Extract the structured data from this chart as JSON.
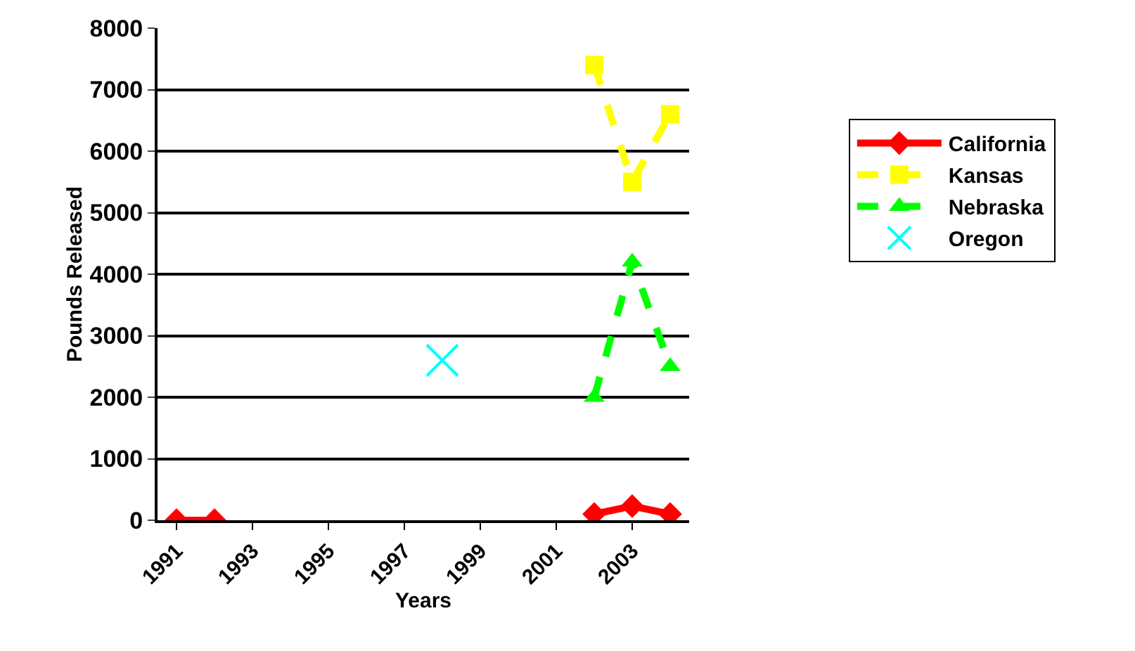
{
  "chart_data": {
    "type": "line",
    "xlabel": "Years",
    "ylabel": "Pounds Released",
    "categories": [
      "1991",
      null,
      "1993",
      null,
      "1995",
      null,
      "1997",
      null,
      "1999",
      null,
      "2001",
      null,
      "2003",
      null
    ],
    "series": [
      {
        "name": "California",
        "color": "#ff0000",
        "marker": "diamond",
        "line_style": "solid",
        "values": [
          0,
          0,
          null,
          null,
          null,
          null,
          null,
          null,
          null,
          null,
          null,
          100,
          230,
          100
        ]
      },
      {
        "name": "Kansas",
        "color": "#ffff00",
        "marker": "square",
        "line_style": "dashed",
        "values": [
          null,
          null,
          null,
          null,
          null,
          null,
          null,
          null,
          null,
          null,
          null,
          7400,
          5500,
          6600
        ]
      },
      {
        "name": "Nebraska",
        "color": "#00ff00",
        "marker": "triangle",
        "line_style": "dashed",
        "values": [
          null,
          null,
          null,
          null,
          null,
          null,
          null,
          null,
          null,
          null,
          null,
          2000,
          4200,
          2500
        ]
      },
      {
        "name": "Oregon",
        "color": "#00ffff",
        "marker": "cross",
        "line_style": "none",
        "values": [
          null,
          null,
          null,
          null,
          null,
          null,
          null,
          2600,
          null,
          null,
          null,
          null,
          null,
          null
        ]
      }
    ],
    "ylim": [
      0,
      8000
    ],
    "yticks": [
      0,
      1000,
      2000,
      3000,
      4000,
      5000,
      6000,
      7000,
      8000
    ],
    "grid": "y",
    "legend": "right"
  }
}
